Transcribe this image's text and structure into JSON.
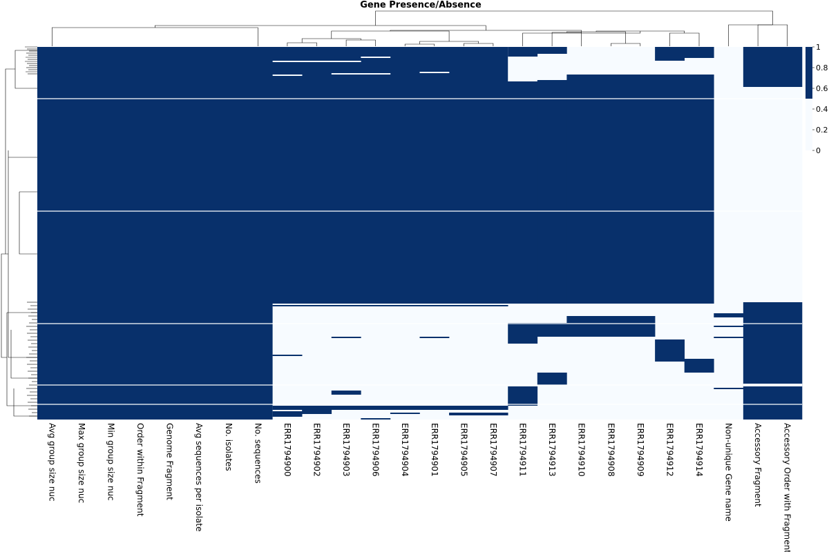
{
  "chart_data": {
    "type": "heatmap",
    "title": "Gene Presence/Absence",
    "colors": {
      "present": "#08306b",
      "absent": "#f7fbff",
      "divider": "#ffffff"
    },
    "colorbar": {
      "ticks": [
        "1",
        "0.8",
        "0.6",
        "0.4",
        "0.2",
        "0"
      ],
      "range": [
        0,
        1
      ]
    },
    "columns": [
      "Avg group size nuc",
      "Max group size nuc",
      "Min group size nuc",
      "Order within Fragment",
      "Genome Fragment",
      "Avg sequences per isolate",
      "No. isolates",
      "No. sequences",
      "ERR1794900",
      "ERR1794902",
      "ERR1794903",
      "ERR1794906",
      "ERR1794904",
      "ERR1794901",
      "ERR1794905",
      "ERR1794907",
      "ERR1794911",
      "ERR1794913",
      "ERR1794910",
      "ERR1794908",
      "ERR1794909",
      "ERR1794912",
      "ERR1794914",
      "Non-unique Gene name",
      "Accessory Fragment",
      "Accessory Order with Fragment"
    ],
    "rows": 540,
    "row_dividers": [
      75,
      238,
      401,
      490,
      518
    ],
    "blocks": [
      {
        "cols": [
          0,
          22
        ],
        "rows": [
          0,
          372
        ],
        "value": 1
      },
      {
        "cols": [
          0,
          7
        ],
        "rows": [
          372,
          540
        ],
        "value": 1
      },
      {
        "cols": [
          23,
          23
        ],
        "rows": [
          0,
          540
        ],
        "value": 0
      },
      {
        "cols": [
          24,
          25
        ],
        "rows": [
          0,
          58
        ],
        "value": 1
      },
      {
        "cols": [
          24,
          25
        ],
        "rows": [
          58,
          370
        ],
        "value": 0
      },
      {
        "cols": [
          24,
          25
        ],
        "rows": [
          370,
          540
        ],
        "value": 1
      },
      {
        "cols": [
          8,
          15
        ],
        "rows": [
          372,
          540
        ],
        "value": 0
      },
      {
        "cols": [
          16,
          22
        ],
        "rows": [
          0,
          50
        ],
        "value": 0
      },
      {
        "cols": [
          16,
          16
        ],
        "rows": [
          0,
          14
        ],
        "value": 1
      },
      {
        "cols": [
          17,
          17
        ],
        "rows": [
          0,
          10
        ],
        "value": 1
      },
      {
        "cols": [
          21,
          21
        ],
        "rows": [
          0,
          20
        ],
        "value": 1
      },
      {
        "cols": [
          22,
          22
        ],
        "rows": [
          0,
          16
        ],
        "value": 1
      },
      {
        "cols": [
          17,
          17
        ],
        "rows": [
          48,
          80
        ],
        "value": 1
      },
      {
        "cols": [
          16,
          16
        ],
        "rows": [
          50,
          372
        ],
        "value": 1
      },
      {
        "cols": [
          18,
          22
        ],
        "rows": [
          40,
          372
        ],
        "value": 1
      },
      {
        "cols": [
          16,
          22
        ],
        "rows": [
          372,
          540
        ],
        "value": 0
      },
      {
        "cols": [
          18,
          20
        ],
        "rows": [
          390,
          420
        ],
        "value": 1
      },
      {
        "cols": [
          16,
          16
        ],
        "rows": [
          400,
          430
        ],
        "value": 1
      },
      {
        "cols": [
          17,
          17
        ],
        "rows": [
          400,
          420
        ],
        "value": 1
      },
      {
        "cols": [
          21,
          21
        ],
        "rows": [
          424,
          456
        ],
        "value": 1
      },
      {
        "cols": [
          22,
          22
        ],
        "rows": [
          452,
          472
        ],
        "value": 1
      },
      {
        "cols": [
          17,
          17
        ],
        "rows": [
          472,
          490
        ],
        "value": 1
      },
      {
        "cols": [
          16,
          16
        ],
        "rows": [
          492,
          520
        ],
        "value": 1
      }
    ],
    "row_lines": [
      {
        "cols": [
          8,
          15
        ],
        "rows": [
          374,
          376
        ],
        "value": 1
      },
      {
        "cols": [
          8,
          15
        ],
        "rows": [
          520,
          526
        ],
        "value": 1
      },
      {
        "cols": [
          8,
          8
        ],
        "rows": [
          528,
          536
        ],
        "value": 1
      },
      {
        "cols": [
          10,
          10
        ],
        "rows": [
          498,
          504
        ],
        "value": 1
      },
      {
        "cols": [
          9,
          9
        ],
        "rows": [
          522,
          532
        ],
        "value": 1
      },
      {
        "cols": [
          8,
          8
        ],
        "rows": [
          20,
          22
        ],
        "value": 0
      },
      {
        "cols": [
          8,
          8
        ],
        "rows": [
          40,
          42
        ],
        "value": 0
      },
      {
        "cols": [
          9,
          10
        ],
        "rows": [
          20,
          22
        ],
        "value": 0
      },
      {
        "cols": [
          10,
          11
        ],
        "rows": [
          38,
          40
        ],
        "value": 0
      },
      {
        "cols": [
          11,
          11
        ],
        "rows": [
          14,
          16
        ],
        "value": 0
      },
      {
        "cols": [
          13,
          13
        ],
        "rows": [
          36,
          38
        ],
        "value": 0
      },
      {
        "cols": [
          10,
          10
        ],
        "rows": [
          420,
          422
        ],
        "value": 1
      },
      {
        "cols": [
          13,
          13
        ],
        "rows": [
          420,
          422
        ],
        "value": 1
      },
      {
        "cols": [
          8,
          8
        ],
        "rows": [
          446,
          448
        ],
        "value": 1
      },
      {
        "cols": [
          11,
          11
        ],
        "rows": [
          538,
          540
        ],
        "value": 1
      },
      {
        "cols": [
          12,
          12
        ],
        "rows": [
          530,
          532
        ],
        "value": 1
      },
      {
        "cols": [
          14,
          15
        ],
        "rows": [
          530,
          534
        ],
        "value": 1
      },
      {
        "cols": [
          23,
          23
        ],
        "rows": [
          386,
          392
        ],
        "value": 1
      },
      {
        "cols": [
          23,
          23
        ],
        "rows": [
          404,
          406
        ],
        "value": 1
      },
      {
        "cols": [
          23,
          23
        ],
        "rows": [
          420,
          422
        ],
        "value": 1
      },
      {
        "cols": [
          23,
          23
        ],
        "rows": [
          494,
          496
        ],
        "value": 1
      },
      {
        "cols": [
          24,
          25
        ],
        "rows": [
          488,
          492
        ],
        "value": 0
      }
    ]
  }
}
